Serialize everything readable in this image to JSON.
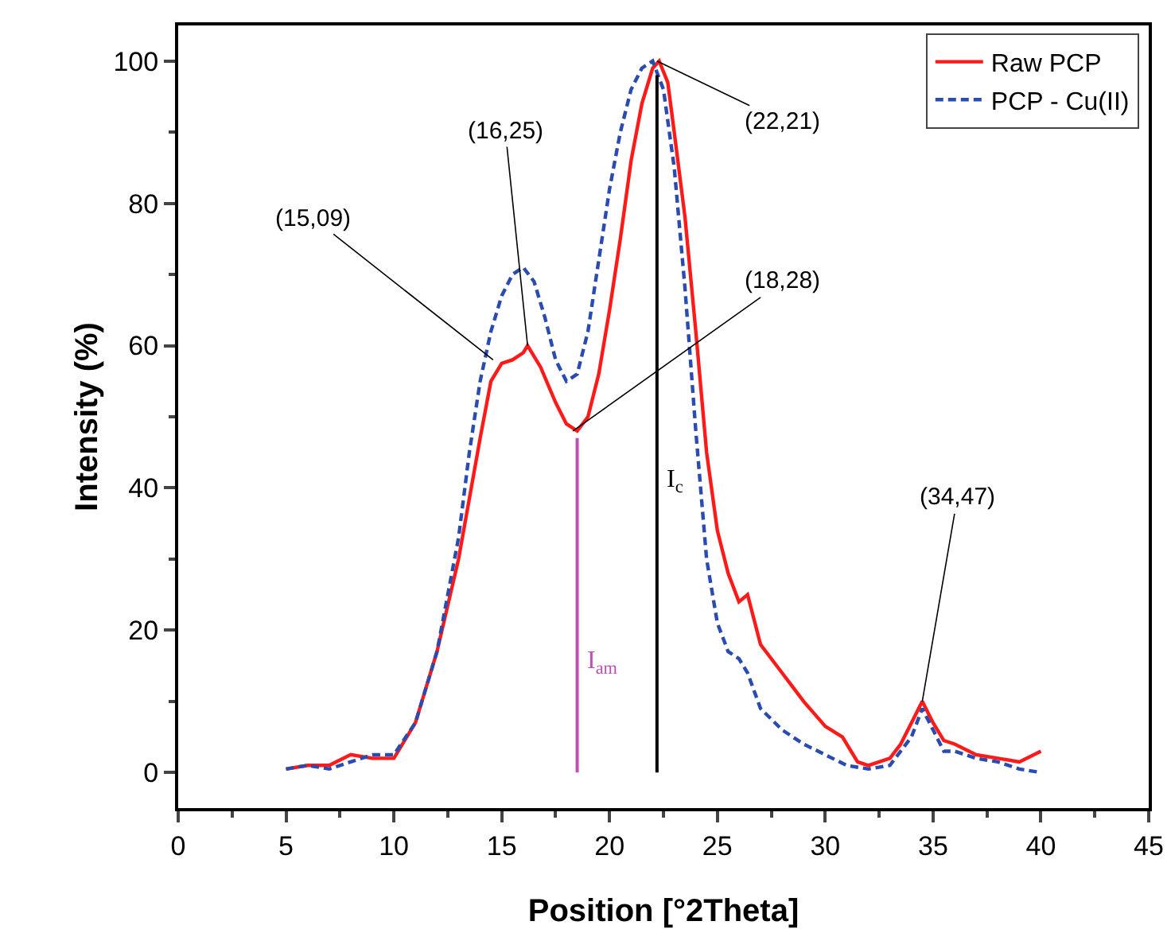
{
  "chart_data": {
    "type": "line",
    "xlabel": "Position [°2Theta]",
    "ylabel": "Intensity (%)",
    "xlim": [
      0,
      45
    ],
    "xticks": [
      0,
      5,
      10,
      15,
      20,
      25,
      30,
      35,
      40,
      45
    ],
    "ylim": [
      -5,
      105
    ],
    "yticks": [
      0,
      20,
      40,
      60,
      80,
      100
    ],
    "grid": false,
    "legend": "top right",
    "marker": "none",
    "series": [
      {
        "name": "Raw PCP",
        "color": "#ff1a1a",
        "line_style": "solid",
        "x": [
          5,
          6,
          7,
          8,
          9,
          10,
          11,
          12,
          13,
          14,
          14.5,
          15,
          15.5,
          16,
          16.2,
          16.8,
          17.5,
          18,
          18.5,
          19,
          19.5,
          20,
          20.5,
          21,
          21.5,
          22,
          22.3,
          22.7,
          23,
          23.5,
          24,
          24.5,
          25,
          25.5,
          26,
          26.4,
          27,
          28,
          28.5,
          29,
          30,
          30.8,
          31.5,
          32,
          33,
          33.5,
          34,
          34.5,
          35,
          35.5,
          36,
          37,
          38,
          39,
          40
        ],
        "values": [
          0.5,
          1,
          1,
          2.5,
          2,
          2,
          7,
          17,
          30,
          47,
          55,
          57.5,
          58,
          59,
          60,
          57,
          52,
          49,
          48,
          50,
          56,
          65,
          75,
          86,
          94,
          99,
          100,
          97,
          90,
          78,
          62,
          45,
          34,
          28,
          24,
          25,
          18,
          14,
          12,
          10,
          6.5,
          5,
          1.5,
          1,
          2,
          4,
          7,
          10,
          7,
          4.5,
          4,
          2.5,
          2,
          1.5,
          3
        ]
      },
      {
        "name": "PCP - Cu(II)",
        "color": "#2a4bb0",
        "line_style": "dashed",
        "x": [
          5,
          6,
          7,
          8,
          9,
          10,
          11,
          12,
          13,
          13.5,
          14,
          14.5,
          15,
          15.5,
          16,
          16.5,
          17,
          17.5,
          18,
          18.5,
          19,
          19.5,
          20,
          20.5,
          21,
          21.5,
          22,
          22.5,
          23,
          23.5,
          24,
          24.5,
          25,
          25.5,
          26,
          26.4,
          27,
          28,
          29,
          30,
          31,
          32,
          33,
          34,
          34.5,
          35,
          35.5,
          36,
          37,
          38,
          39,
          40
        ],
        "values": [
          0.5,
          1,
          0.5,
          1.5,
          2.5,
          2.5,
          7,
          17,
          33,
          45,
          55,
          62,
          67,
          70,
          71,
          69,
          64,
          58,
          55,
          56,
          62,
          72,
          82,
          90,
          96,
          99,
          100,
          96,
          85,
          68,
          48,
          30,
          21,
          17,
          16,
          14,
          9,
          6,
          4,
          2.5,
          1,
          0.5,
          1,
          5,
          9,
          6,
          3,
          3,
          2,
          1.5,
          0.5,
          0
        ]
      },
      {
        "name": "I$_{am}$",
        "color": "#c050b0",
        "line_style": "solid",
        "x": [
          18.5,
          18.5
        ],
        "values": [
          0,
          47
        ]
      },
      {
        "name": "I$_{c}$",
        "color": "#000000",
        "line_style": "solid",
        "x": [
          22.2,
          22.2
        ],
        "values": [
          0,
          98
        ]
      }
    ],
    "annotations": [
      {
        "text": "(15,09)",
        "x": 14.6,
        "y": 58
      },
      {
        "text": "(16,25)",
        "x": 16.2,
        "y": 60
      },
      {
        "text": "(18,28)",
        "x": 18.3,
        "y": 48
      },
      {
        "text": "(22,21)",
        "x": 22.2,
        "y": 100
      },
      {
        "text": "(34,47)",
        "x": 34.5,
        "y": 10
      }
    ]
  }
}
